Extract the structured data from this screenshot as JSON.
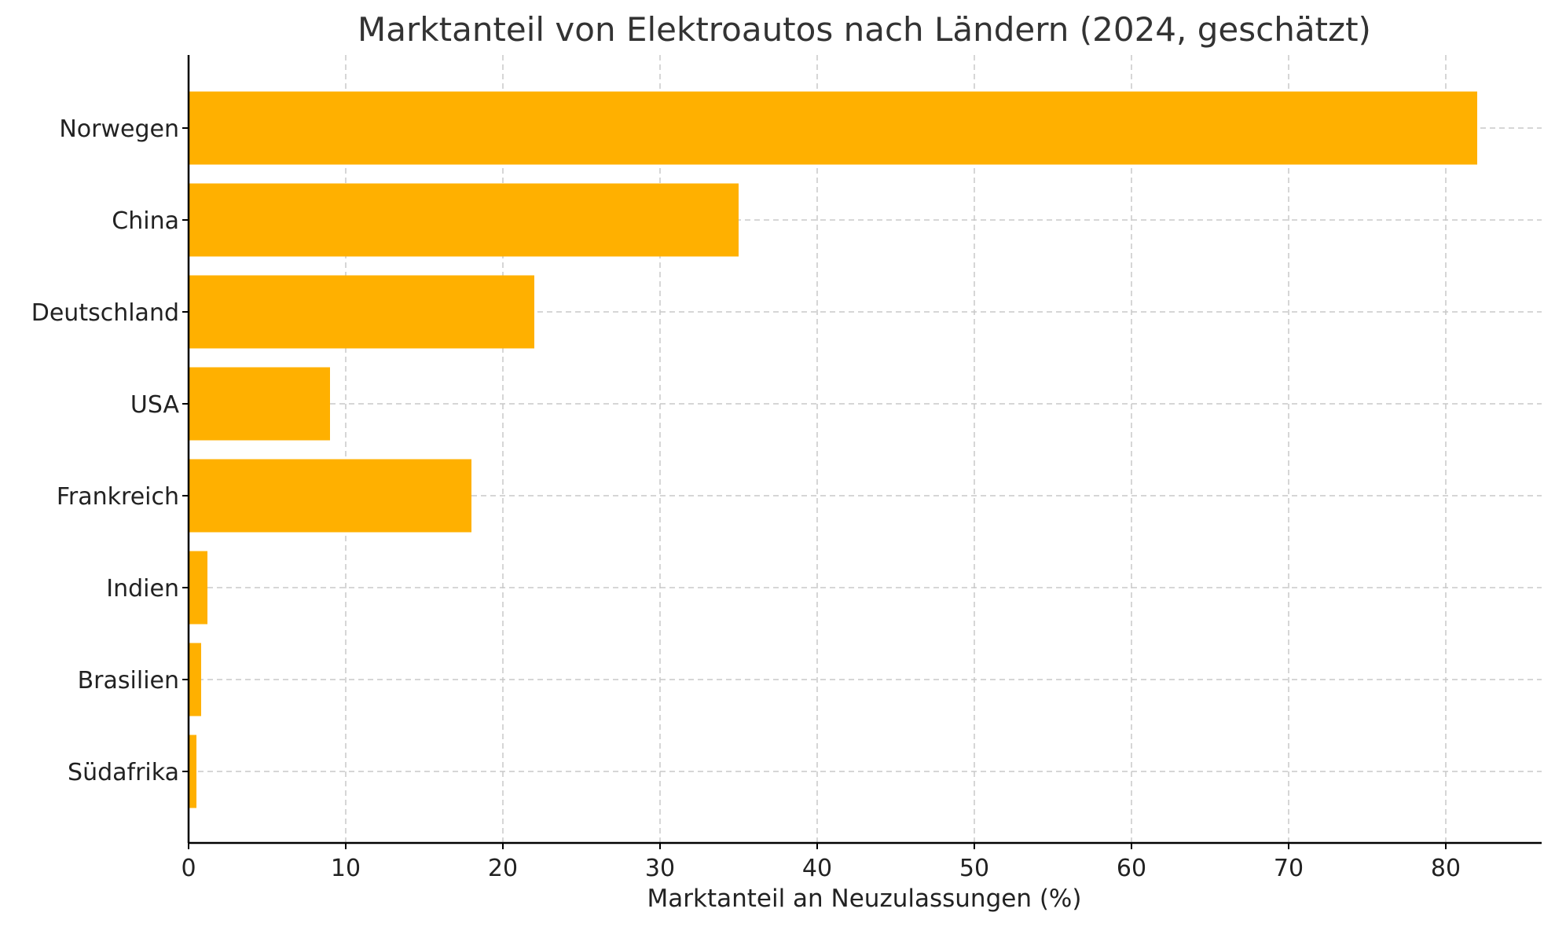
{
  "chart_data": {
    "type": "bar",
    "orientation": "horizontal",
    "title": "Marktanteil von Elektroautos nach Ländern (2024, geschätzt)",
    "xlabel": "Marktanteil an Neuzulassungen (%)",
    "ylabel": "",
    "categories": [
      "Norwegen",
      "China",
      "Deutschland",
      "USA",
      "Frankreich",
      "Indien",
      "Brasilien",
      "Südafrika"
    ],
    "values": [
      82,
      35,
      22,
      9,
      18,
      1.2,
      0.8,
      0.5
    ],
    "xlim": [
      0,
      86.1
    ],
    "xticks": [
      0,
      10,
      20,
      30,
      40,
      50,
      60,
      70,
      80
    ],
    "xtick_labels": [
      "0",
      "10",
      "20",
      "30",
      "40",
      "50",
      "60",
      "70",
      "80"
    ],
    "grid": true,
    "grid_style": "dashed",
    "bar_color": "#FFB000"
  }
}
